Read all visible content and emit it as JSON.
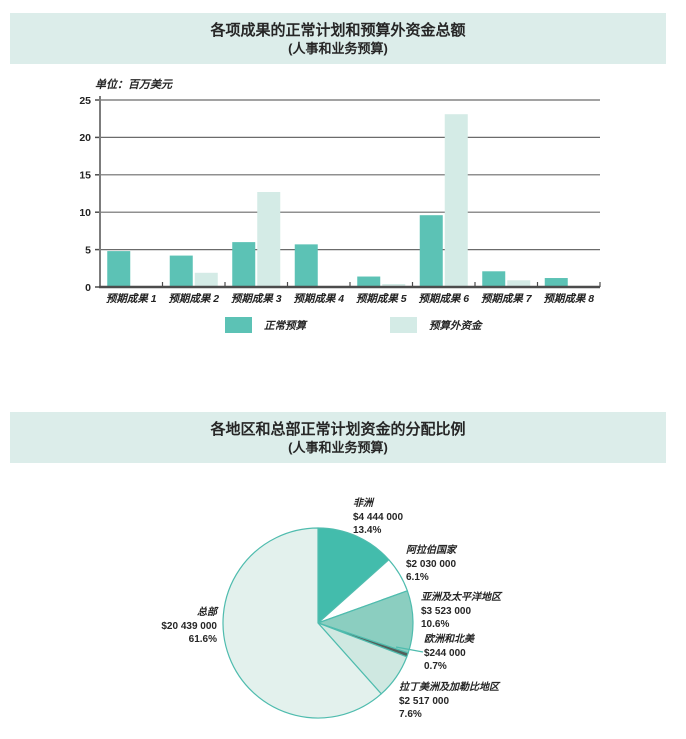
{
  "page": {
    "background": "#ffffff",
    "band_color": "#dcedea"
  },
  "chart1": {
    "title": "各项成果的正常计划和预算外资金总额",
    "subtitle": "(人事和业务预算)",
    "unit_label": "单位：百万美元",
    "chart_data": {
      "type": "bar",
      "categories": [
        "预期成果 1",
        "预期成果 2",
        "预期成果 3",
        "预期成果 4",
        "预期成果 5",
        "预期成果 6",
        "预期成果 7",
        "预期成果 8"
      ],
      "series": [
        {
          "name": "正常预算",
          "color": "#5cc2b5",
          "values": [
            4.8,
            4.2,
            6.0,
            5.7,
            1.4,
            9.6,
            2.1,
            1.2
          ]
        },
        {
          "name": "预算外资金",
          "color": "#d4ebe6",
          "values": [
            0.1,
            1.9,
            12.7,
            0.1,
            0.4,
            23.1,
            0.9,
            0.15
          ]
        }
      ],
      "ylim": [
        0,
        25
      ],
      "yticks": [
        0,
        5,
        10,
        15,
        20,
        25
      ],
      "grid": true,
      "grid_color": "#6b6b6b",
      "axis_color": "#4c4c4c",
      "legend_position": "bottom"
    }
  },
  "chart2": {
    "title": "各地区和总部正常计划资金的分配比例",
    "subtitle": "(人事和业务预算)",
    "chart_data": {
      "type": "pie",
      "start_angle": "12-oclock",
      "direction": "clockwise",
      "stroke_color": "#4fbcae",
      "slices": [
        {
          "label": "非洲",
          "amount": "$4 444 000",
          "pct": 13.4,
          "pct_label": "13.4%",
          "color": "#43bcac"
        },
        {
          "label": "阿拉伯国家",
          "amount": "$2 030 000",
          "pct": 6.1,
          "pct_label": "6.1%",
          "color": "#ffffff"
        },
        {
          "label": "亚洲及太平洋地区",
          "amount": "$3 523 000",
          "pct": 10.6,
          "pct_label": "10.6%",
          "color": "#8bcec0"
        },
        {
          "label": "欧洲和北美",
          "amount": "$244 000",
          "pct": 0.7,
          "pct_label": "0.7%",
          "color": "#525f5a"
        },
        {
          "label": "拉丁美洲及加勒比地区",
          "amount": "$2 517 000",
          "pct": 7.6,
          "pct_label": "7.6%",
          "color": "#cfe8e1"
        },
        {
          "label": "总部",
          "amount": "$20 439 000",
          "pct": 61.6,
          "pct_label": "61.6%",
          "color": "#e3f1ed"
        }
      ]
    }
  }
}
